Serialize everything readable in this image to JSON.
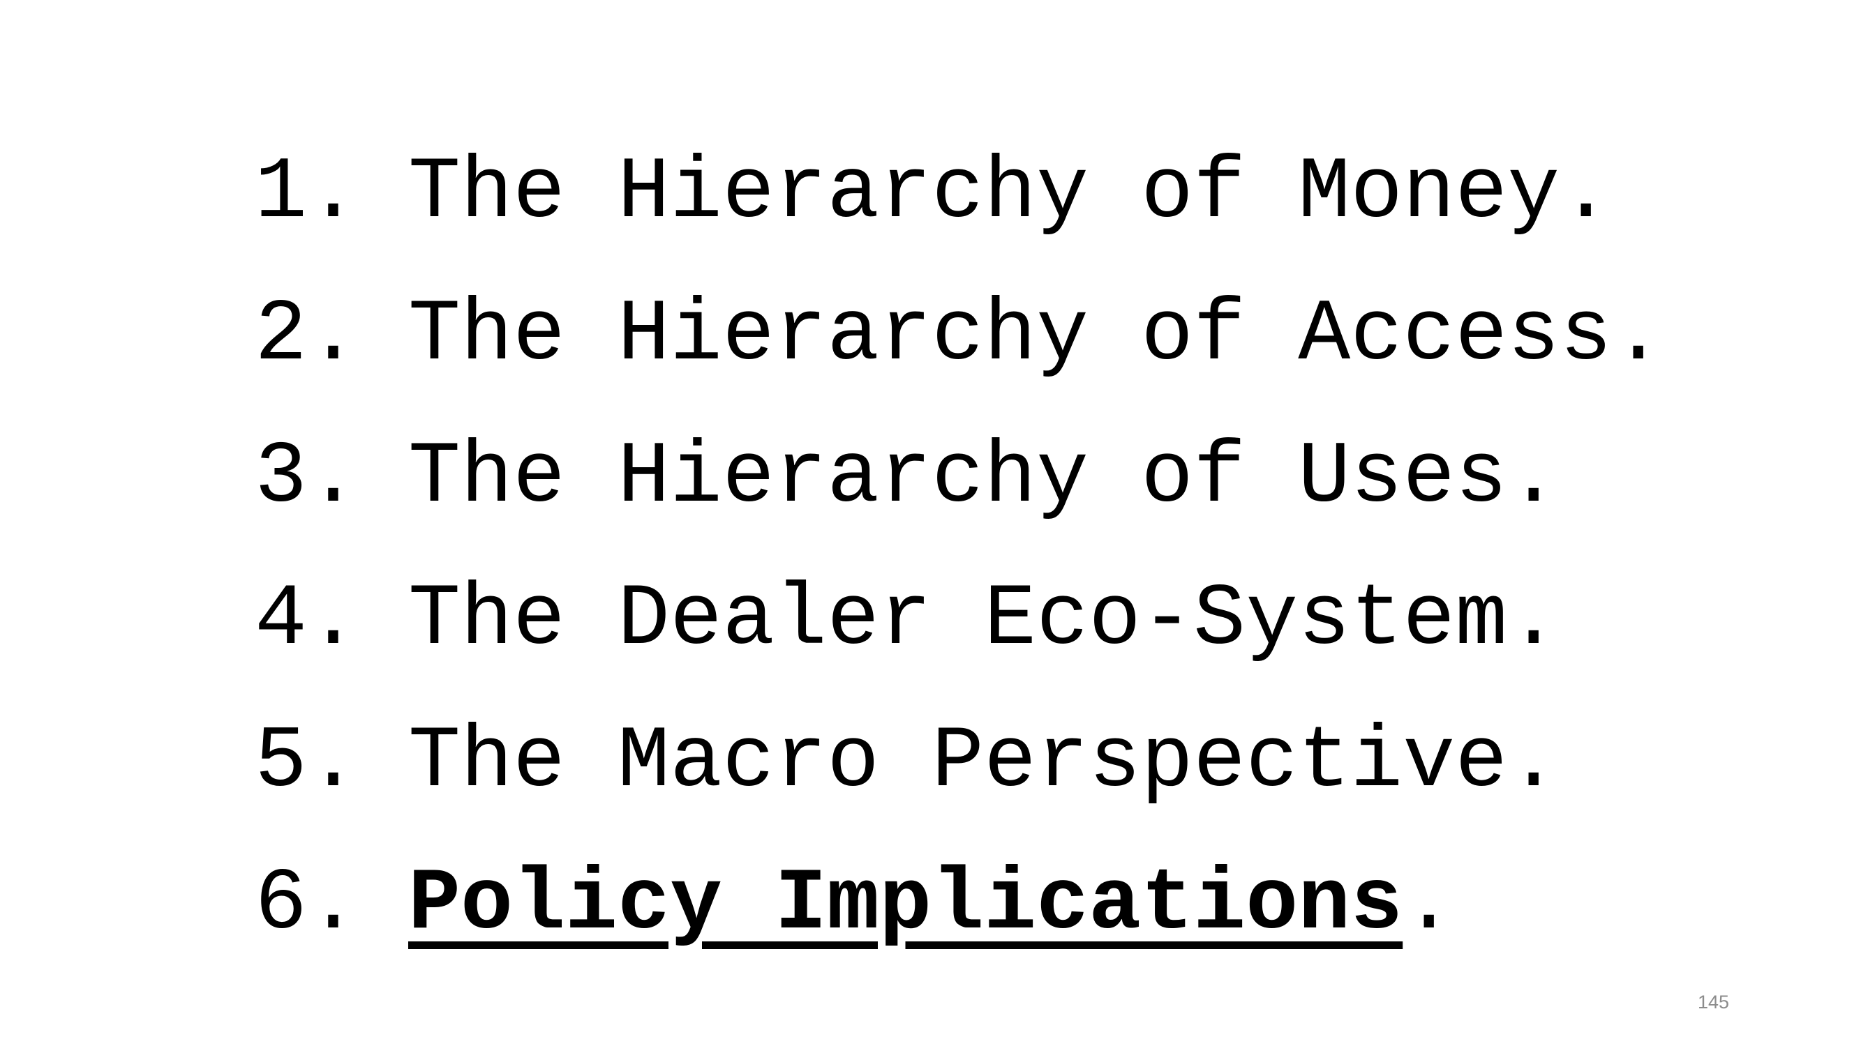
{
  "agenda": {
    "items": [
      {
        "number": "1.",
        "text": "The Hierarchy of Money",
        "suffix": "."
      },
      {
        "number": "2.",
        "text": "The Hierarchy of Access",
        "suffix": "."
      },
      {
        "number": "3.",
        "text": "The Hierarchy of Uses",
        "suffix": "."
      },
      {
        "number": "4.",
        "text": "The Dealer Eco-System",
        "suffix": "."
      },
      {
        "number": "5.",
        "text": "The Macro Perspective",
        "suffix": "."
      },
      {
        "number": "6.",
        "text": "Policy Implications",
        "suffix": "."
      }
    ],
    "current_index": 5
  },
  "footer": {
    "page_number": "145"
  }
}
